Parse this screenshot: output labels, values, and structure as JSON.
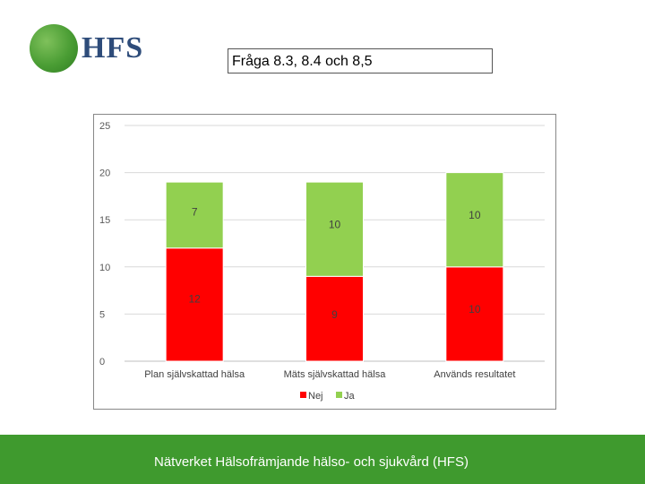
{
  "logo": {
    "text": "HFS",
    "color_circle": "#4a9d34",
    "color_text": "#2e4c7a"
  },
  "question": {
    "title": "Fråga 8.3, 8.4 och 8,5"
  },
  "chart_data": {
    "type": "bar",
    "stacked": true,
    "categories": [
      "Plan självskattad hälsa",
      "Mäts självskattad hälsa",
      "Används resultatet"
    ],
    "series": [
      {
        "name": "Nej",
        "color": "#ff0000",
        "values": [
          12,
          9,
          10
        ]
      },
      {
        "name": "Ja",
        "color": "#92d050",
        "values": [
          7,
          10,
          10
        ]
      }
    ],
    "ylim": [
      0,
      25
    ],
    "yticks": [
      0,
      5,
      10,
      15,
      20,
      25
    ],
    "grid": true,
    "legend_position": "bottom",
    "data_labels": true
  },
  "footer": {
    "text": "Nätverket Hälsofrämjande hälso- och sjukvård (HFS)",
    "color": "#3f9a2e"
  }
}
